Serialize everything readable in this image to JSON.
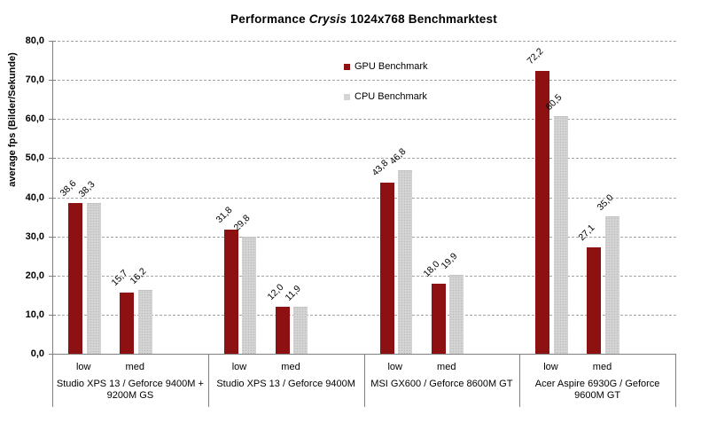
{
  "chart_data": {
    "type": "bar",
    "title": "Performance Crysis 1024x768 Benchmarktest",
    "title_parts": {
      "prefix": "Performance ",
      "italic": "Crysis",
      "suffix": " 1024x768 Benchmarktest"
    },
    "ylabel": "average fps (Bilder/Sekunde)",
    "xlabel": "",
    "ylim": [
      0,
      80
    ],
    "ytick_interval": 10,
    "grid": true,
    "gridline_style": "dashed",
    "decimal_comma": true,
    "value_decimals": 1,
    "legend_position": "top-center-inside",
    "legend": [
      {
        "label": "GPU Benchmark",
        "color": "#8e1111"
      },
      {
        "label": "CPU Benchmark",
        "color": "#d4d4d4"
      }
    ],
    "subcategories": [
      "low",
      "med"
    ],
    "groups": [
      {
        "label": "Studio XPS 13 / Geforce 9400M + 9200M GS",
        "series": [
          {
            "name": "GPU Benchmark",
            "values": [
              38.6,
              15.7
            ]
          },
          {
            "name": "CPU Benchmark",
            "values": [
              38.3,
              16.2
            ]
          }
        ]
      },
      {
        "label": "Studio XPS 13 / Geforce 9400M",
        "series": [
          {
            "name": "GPU Benchmark",
            "values": [
              31.8,
              12.0
            ]
          },
          {
            "name": "CPU Benchmark",
            "values": [
              29.8,
              11.9
            ]
          }
        ]
      },
      {
        "label": "MSI GX600 / Geforce 8600M GT",
        "series": [
          {
            "name": "GPU Benchmark",
            "values": [
              43.8,
              18.0
            ]
          },
          {
            "name": "CPU Benchmark",
            "values": [
              46.8,
              19.9
            ]
          }
        ]
      },
      {
        "label": "Acer Aspire 6930G / Geforce 9600M GT",
        "series": [
          {
            "name": "GPU Benchmark",
            "values": [
              72.2,
              27.1
            ]
          },
          {
            "name": "CPU Benchmark",
            "values": [
              60.5,
              35.0
            ]
          }
        ]
      }
    ],
    "colors": {
      "gpu_bar": "#8e1111",
      "cpu_bar": "#d4d4d4",
      "gridline": "#a3a3a3",
      "axis": "#808080",
      "text": "#000000"
    }
  }
}
